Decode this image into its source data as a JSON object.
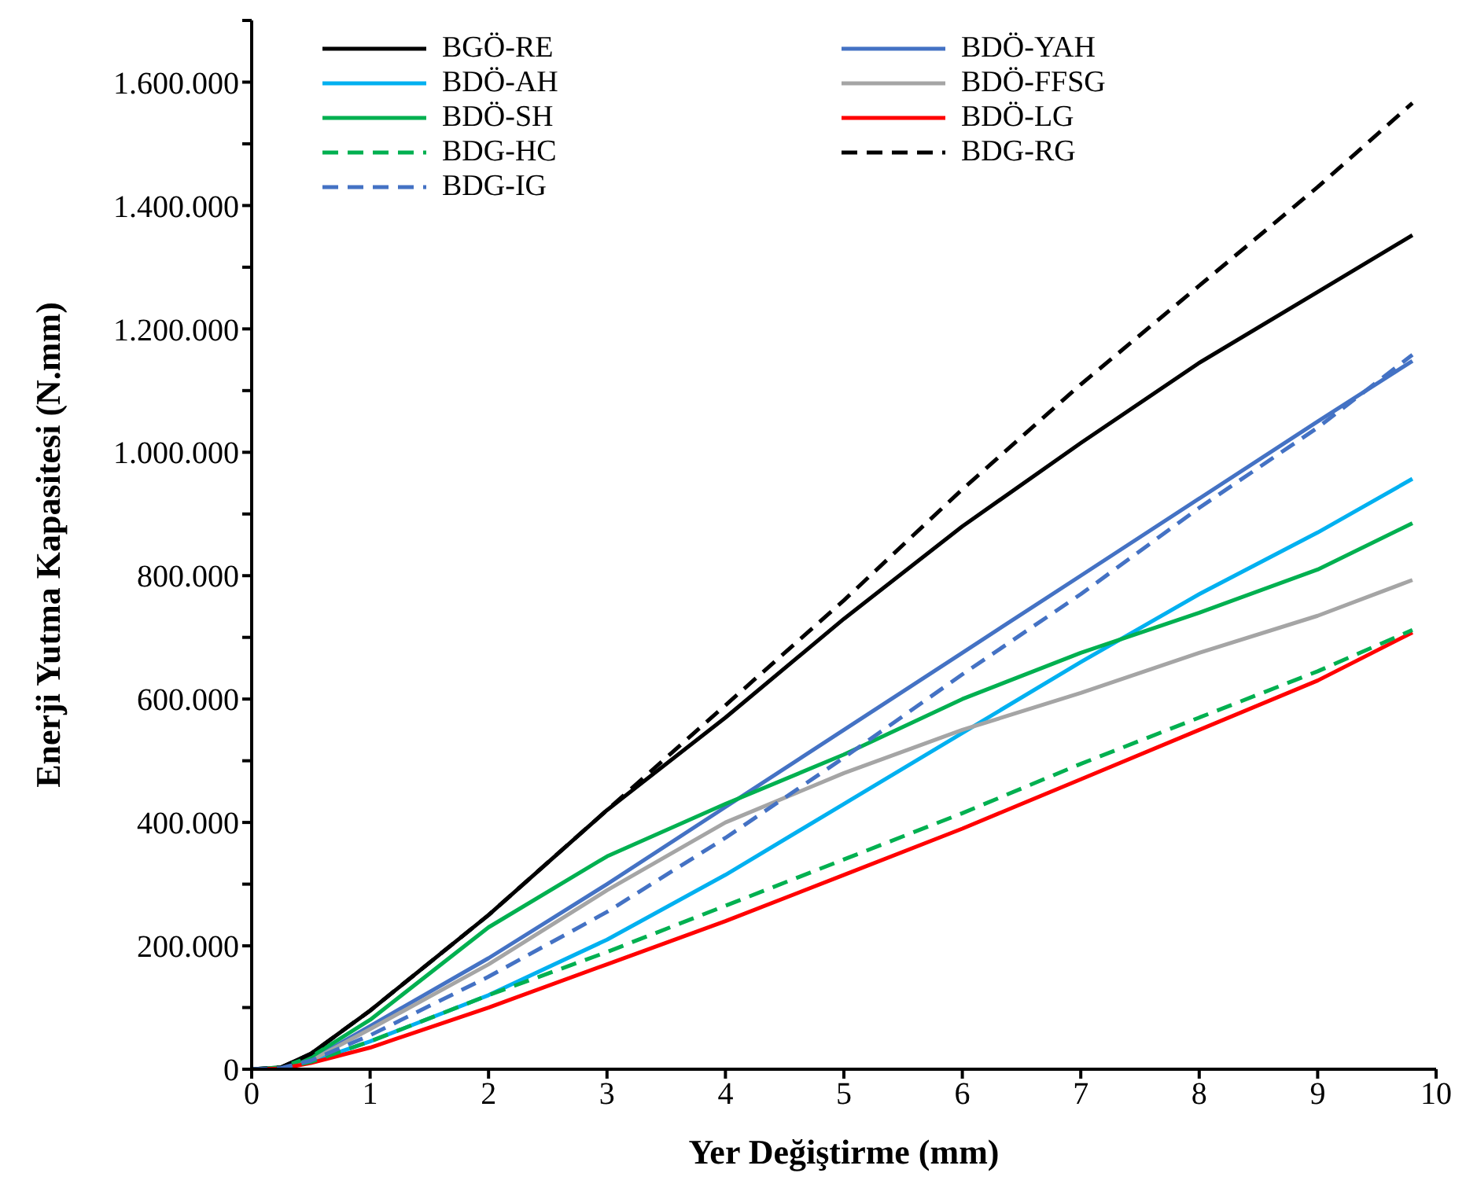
{
  "chart_data": {
    "type": "line",
    "xlabel": "Yer Değiştirme (mm)",
    "ylabel": "Enerji Yutma Kapasitesi (N.mm)",
    "x": [
      0,
      0.25,
      0.5,
      1,
      2,
      3,
      4,
      5,
      6,
      7,
      8,
      9,
      9.8
    ],
    "series": [
      {
        "name": "BGÖ-RE",
        "color": "#000000",
        "line_style": "solid",
        "values": [
          0,
          3000,
          25000,
          95000,
          250000,
          420000,
          570000,
          730000,
          880000,
          1015000,
          1145000,
          1260000,
          1352000
        ]
      },
      {
        "name": "BDÖ-YAH",
        "color": "#4472c4",
        "line_style": "solid",
        "values": [
          0,
          2000,
          15000,
          70000,
          180000,
          300000,
          425000,
          550000,
          675000,
          800000,
          925000,
          1050000,
          1148000
        ]
      },
      {
        "name": "BDÖ-AH",
        "color": "#00b0f0",
        "line_style": "solid",
        "values": [
          null,
          null,
          12000,
          45000,
          120000,
          210000,
          315000,
          430000,
          545000,
          660000,
          770000,
          870000,
          957000
        ]
      },
      {
        "name": "BDÖ-FFSG",
        "color": "#a5a5a5",
        "line_style": "solid",
        "values": [
          0,
          2000,
          14000,
          65000,
          170000,
          290000,
          400000,
          480000,
          550000,
          610000,
          675000,
          735000,
          793000
        ]
      },
      {
        "name": "BDÖ-SH",
        "color": "#00b050",
        "line_style": "solid",
        "values": [
          0,
          3000,
          20000,
          80000,
          230000,
          345000,
          430000,
          510000,
          600000,
          675000,
          740000,
          810000,
          885000
        ]
      },
      {
        "name": "BDÖ-LG",
        "color": "#ff0000",
        "line_style": "solid",
        "values": [
          0,
          1000,
          10000,
          35000,
          100000,
          170000,
          240000,
          315000,
          390000,
          470000,
          550000,
          630000,
          708000
        ]
      },
      {
        "name": "BDG-HC",
        "color": "#00b050",
        "line_style": "dashed",
        "values": [
          0,
          2000,
          12000,
          45000,
          120000,
          190000,
          265000,
          340000,
          415000,
          495000,
          570000,
          645000,
          712000
        ]
      },
      {
        "name": "BDG-RG",
        "color": "#000000",
        "line_style": "dashed",
        "values": [
          0,
          3000,
          25000,
          95000,
          250000,
          420000,
          590000,
          760000,
          940000,
          1110000,
          1270000,
          1430000,
          1566000
        ]
      },
      {
        "name": "BDG-IG",
        "color": "#4472c4",
        "line_style": "dashed",
        "values": [
          0,
          2000,
          14000,
          55000,
          150000,
          255000,
          375000,
          505000,
          640000,
          770000,
          910000,
          1040000,
          1158000
        ]
      }
    ],
    "xlim": [
      0,
      10
    ],
    "xticks": [
      0,
      1,
      2,
      3,
      4,
      5,
      6,
      7,
      8,
      9,
      10
    ],
    "ylim": [
      0,
      1700000
    ],
    "yticks": [
      0,
      {
        "value": 100000,
        "label": null
      },
      {
        "value": 200000,
        "label": "200.000"
      },
      {
        "value": 300000,
        "label": null
      },
      {
        "value": 400000,
        "label": "400.000"
      },
      {
        "value": 500000,
        "label": null
      },
      {
        "value": 600000,
        "label": "600.000"
      },
      {
        "value": 700000,
        "label": null
      },
      {
        "value": 800000,
        "label": "800.000"
      },
      {
        "value": 900000,
        "label": null
      },
      {
        "value": 1000000,
        "label": "1.000.000"
      },
      {
        "value": 1100000,
        "label": null
      },
      {
        "value": 1200000,
        "label": "1.200.000"
      },
      {
        "value": 1300000,
        "label": null
      },
      {
        "value": 1400000,
        "label": "1.400.000"
      },
      {
        "value": 1500000,
        "label": null
      },
      {
        "value": 1600000,
        "label": "1.600.000"
      },
      {
        "value": 1700000,
        "label": null
      }
    ],
    "grid": false,
    "legend": "top left",
    "marker": "none"
  }
}
